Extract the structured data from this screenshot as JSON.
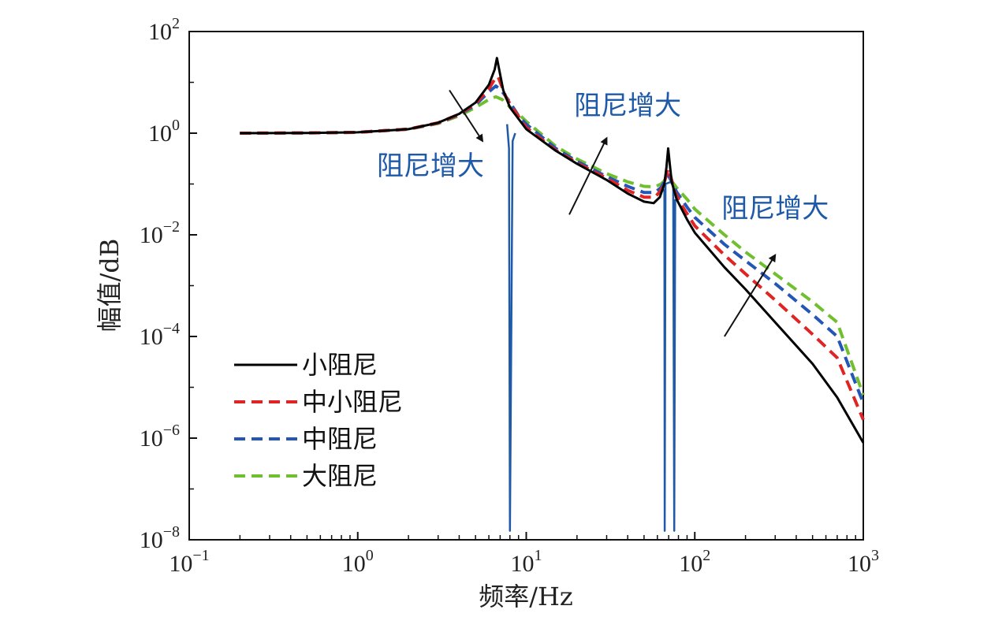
{
  "chart_data": {
    "type": "line",
    "xscale": "log",
    "yscale": "log",
    "xlabel": "频率/Hz",
    "ylabel": "幅值/dB",
    "xlim": [
      0.1,
      1000
    ],
    "ylim": [
      1e-08,
      100
    ],
    "x_ticks": [
      {
        "value": 0.1,
        "base": "10",
        "exp": "−1"
      },
      {
        "value": 1,
        "base": "10",
        "exp": "0"
      },
      {
        "value": 10,
        "base": "10",
        "exp": "1"
      },
      {
        "value": 100,
        "base": "10",
        "exp": "2"
      },
      {
        "value": 1000,
        "base": "10",
        "exp": "3"
      }
    ],
    "y_ticks": [
      {
        "value": 1e-08,
        "base": "10",
        "exp": "−8"
      },
      {
        "value": 1e-06,
        "base": "10",
        "exp": "−6"
      },
      {
        "value": 0.0001,
        "base": "10",
        "exp": "−4"
      },
      {
        "value": 0.01,
        "base": "10",
        "exp": "−2"
      },
      {
        "value": 1,
        "base": "10",
        "exp": "0"
      },
      {
        "value": 100,
        "base": "10",
        "exp": "2"
      }
    ],
    "legend_position": "bottom-left",
    "series": [
      {
        "name": "小阻尼",
        "color": "#000000",
        "style": "solid",
        "points": [
          [
            0.2,
            1.0
          ],
          [
            0.5,
            1.01
          ],
          [
            1,
            1.04
          ],
          [
            2,
            1.2
          ],
          [
            3,
            1.6
          ],
          [
            4,
            2.4
          ],
          [
            5,
            4.0
          ],
          [
            6,
            9.0
          ],
          [
            6.5,
            18
          ],
          [
            6.7,
            30
          ],
          [
            6.9,
            18
          ],
          [
            7.3,
            7
          ],
          [
            8,
            3.2
          ],
          [
            10,
            1.2
          ],
          [
            15,
            0.45
          ],
          [
            20,
            0.25
          ],
          [
            30,
            0.12
          ],
          [
            40,
            0.065
          ],
          [
            50,
            0.045
          ],
          [
            57,
            0.042
          ],
          [
            62,
            0.055
          ],
          [
            66,
            0.1
          ],
          [
            68,
            0.22
          ],
          [
            69.5,
            0.5
          ],
          [
            71,
            0.25
          ],
          [
            73,
            0.11
          ],
          [
            78,
            0.05
          ],
          [
            90,
            0.02
          ],
          [
            100,
            0.011
          ],
          [
            150,
            0.0023
          ],
          [
            200,
            0.00085
          ],
          [
            300,
            0.00019
          ],
          [
            500,
            2.9e-05
          ],
          [
            700,
            6.3e-06
          ],
          [
            1000,
            8.1e-07
          ]
        ]
      },
      {
        "name": "中小阻尼",
        "color": "#e02424",
        "style": "dashed",
        "points": [
          [
            0.2,
            1.0
          ],
          [
            0.5,
            1.01
          ],
          [
            1,
            1.04
          ],
          [
            2,
            1.2
          ],
          [
            3,
            1.6
          ],
          [
            4,
            2.35
          ],
          [
            5,
            3.8
          ],
          [
            6,
            7.5
          ],
          [
            6.5,
            11.5
          ],
          [
            6.8,
            13
          ],
          [
            7.1,
            9
          ],
          [
            7.6,
            5
          ],
          [
            8.5,
            2.8
          ],
          [
            10,
            1.3
          ],
          [
            15,
            0.46
          ],
          [
            20,
            0.26
          ],
          [
            30,
            0.13
          ],
          [
            40,
            0.075
          ],
          [
            50,
            0.055
          ],
          [
            58,
            0.055
          ],
          [
            63,
            0.075
          ],
          [
            67,
            0.13
          ],
          [
            69.5,
            0.2
          ],
          [
            72,
            0.14
          ],
          [
            76,
            0.07
          ],
          [
            85,
            0.035
          ],
          [
            100,
            0.015
          ],
          [
            150,
            0.004
          ],
          [
            200,
            0.0017
          ],
          [
            300,
            0.00052
          ],
          [
            500,
            0.00011
          ],
          [
            700,
            3.8e-05
          ],
          [
            1000,
            2.3e-06
          ]
        ]
      },
      {
        "name": "中阻尼",
        "color": "#2456b8",
        "style": "dashed",
        "points": [
          [
            0.2,
            1.0
          ],
          [
            0.5,
            1.01
          ],
          [
            1,
            1.04
          ],
          [
            2,
            1.2
          ],
          [
            3,
            1.58
          ],
          [
            4,
            2.3
          ],
          [
            5,
            3.6
          ],
          [
            6,
            6.5
          ],
          [
            6.6,
            8.5
          ],
          [
            7.1,
            7
          ],
          [
            7.8,
            4.6
          ],
          [
            9,
            2.2
          ],
          [
            10,
            1.5
          ],
          [
            15,
            0.5
          ],
          [
            20,
            0.28
          ],
          [
            30,
            0.14
          ],
          [
            40,
            0.09
          ],
          [
            50,
            0.068
          ],
          [
            58,
            0.068
          ],
          [
            63,
            0.085
          ],
          [
            67,
            0.12
          ],
          [
            69.5,
            0.15
          ],
          [
            72,
            0.12
          ],
          [
            78,
            0.07
          ],
          [
            90,
            0.035
          ],
          [
            100,
            0.022
          ],
          [
            150,
            0.0065
          ],
          [
            200,
            0.0031
          ],
          [
            300,
            0.0011
          ],
          [
            500,
            0.00027
          ],
          [
            700,
            0.0001
          ],
          [
            1000,
            4.9e-06
          ]
        ]
      },
      {
        "name": "大阻尼",
        "color": "#6fbf2f",
        "style": "dashed",
        "points": [
          [
            0.2,
            1.0
          ],
          [
            0.5,
            1.01
          ],
          [
            1,
            1.04
          ],
          [
            2,
            1.2
          ],
          [
            3,
            1.55
          ],
          [
            4,
            2.2
          ],
          [
            5,
            3.2
          ],
          [
            6,
            4.6
          ],
          [
            6.6,
            5.2
          ],
          [
            7.2,
            4.6
          ],
          [
            8,
            3.3
          ],
          [
            9,
            2.4
          ],
          [
            10,
            1.7
          ],
          [
            15,
            0.55
          ],
          [
            20,
            0.31
          ],
          [
            30,
            0.16
          ],
          [
            40,
            0.11
          ],
          [
            50,
            0.09
          ],
          [
            58,
            0.088
          ],
          [
            63,
            0.1
          ],
          [
            67,
            0.12
          ],
          [
            69.5,
            0.13
          ],
          [
            72,
            0.12
          ],
          [
            78,
            0.085
          ],
          [
            90,
            0.05
          ],
          [
            100,
            0.032
          ],
          [
            150,
            0.01
          ],
          [
            200,
            0.0046
          ],
          [
            300,
            0.0017
          ],
          [
            500,
            0.00048
          ],
          [
            700,
            0.00019
          ],
          [
            1000,
            7.1e-06
          ]
        ]
      },
      {
        "name": "",
        "color": "#1f5aa8",
        "style": "solid",
        "points": [
          [
            7.7,
            1.5
          ],
          [
            7.9,
            0.5
          ],
          [
            8.0,
            1.5e-08
          ],
          [
            8.3,
            0.7
          ],
          [
            8.6,
            1.0
          ]
        ]
      },
      {
        "name": "",
        "color": "#1f5aa8",
        "style": "solid",
        "points": [
          [
            64,
            0.09
          ],
          [
            66,
            0.07
          ],
          [
            66.3,
            1.5e-08
          ],
          [
            67,
            0.1
          ],
          [
            72,
            0.11
          ],
          [
            74.5,
            0.09
          ],
          [
            75.5,
            1.5e-08
          ],
          [
            76.5,
            0.05
          ]
        ]
      }
    ],
    "legend": [
      {
        "label": "小阻尼",
        "color": "#000000",
        "style": "solid"
      },
      {
        "label": "中小阻尼",
        "color": "#e02424",
        "style": "dashed"
      },
      {
        "label": "中阻尼",
        "color": "#2456b8",
        "style": "dashed"
      },
      {
        "label": "大阻尼",
        "color": "#6fbf2f",
        "style": "dashed"
      }
    ],
    "annotations": [
      {
        "text": "阻尼增大",
        "at": [
          2.7,
          0.15
        ],
        "arrow_from": [
          3.5,
          7
        ],
        "arrow_to": [
          5.5,
          0.7
        ]
      },
      {
        "text": "阻尼增大",
        "at": [
          40,
          2.3
        ],
        "arrow_from": [
          18,
          0.025
        ],
        "arrow_to": [
          30,
          0.8
        ]
      },
      {
        "text": "阻尼增大",
        "at": [
          300,
          0.022
        ],
        "arrow_from": [
          150,
          0.0001
        ],
        "arrow_to": [
          300,
          0.004
        ]
      }
    ]
  }
}
